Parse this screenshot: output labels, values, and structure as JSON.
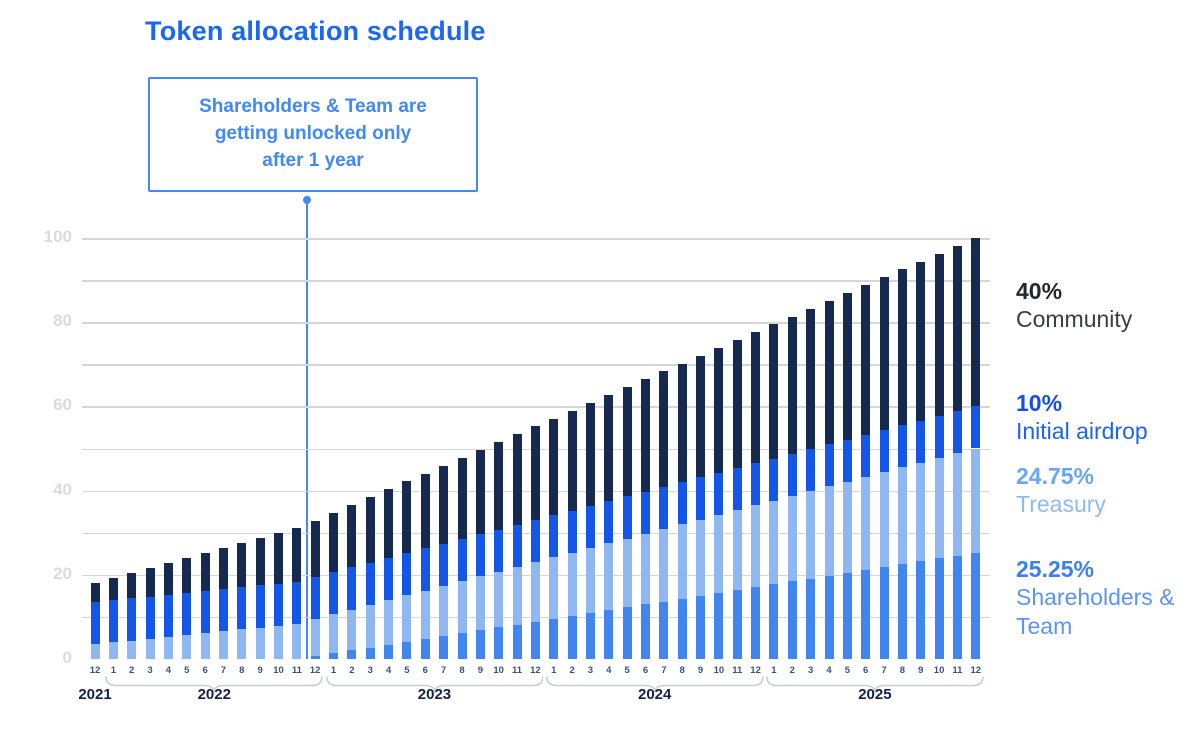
{
  "title": "Token allocation schedule",
  "callout": {
    "line1": "Shareholders & Team are",
    "line2": "getting unlocked only",
    "line3": "after 1 year",
    "color": "#4189f6"
  },
  "colors": {
    "title": "#1b67f2",
    "gridline": "#d6d6d9",
    "y_tick_label": "#dbdbdf",
    "month_label": "#3b517f",
    "year_label": "#13204a",
    "brace": "#c9cdd6"
  },
  "chart_data": {
    "type": "bar",
    "stacked": true,
    "title": "Token allocation schedule",
    "xlabel": "",
    "ylabel": "",
    "ylim": [
      0,
      100
    ],
    "y_ticks": [
      0,
      20,
      40,
      60,
      80,
      100
    ],
    "gridline_step": 10,
    "legend_position": "right",
    "x": [
      "12",
      "1",
      "2",
      "3",
      "4",
      "5",
      "6",
      "7",
      "8",
      "9",
      "10",
      "11",
      "12",
      "1",
      "2",
      "3",
      "4",
      "5",
      "6",
      "7",
      "8",
      "9",
      "10",
      "11",
      "12",
      "1",
      "2",
      "3",
      "4",
      "5",
      "6",
      "7",
      "8",
      "9",
      "10",
      "11",
      "12",
      "1",
      "2",
      "3",
      "4",
      "5",
      "6",
      "7",
      "8",
      "9",
      "10",
      "11",
      "12"
    ],
    "year_groups": [
      {
        "label": "2021",
        "start": 0,
        "end": 0
      },
      {
        "label": "2022",
        "start": 1,
        "end": 12
      },
      {
        "label": "2023",
        "start": 13,
        "end": 24
      },
      {
        "label": "2024",
        "start": 25,
        "end": 36
      },
      {
        "label": "2025",
        "start": 37,
        "end": 48
      }
    ],
    "series": [
      {
        "name": "Shareholders & Team",
        "color": "#4085f0",
        "values": [
          0,
          0,
          0,
          0,
          0,
          0,
          0,
          0,
          0,
          0,
          0,
          0,
          0.68,
          1.36,
          2.05,
          2.73,
          3.41,
          4.09,
          4.78,
          5.46,
          6.14,
          6.82,
          7.51,
          8.19,
          8.87,
          9.55,
          10.24,
          10.92,
          11.6,
          12.28,
          12.97,
          13.65,
          14.33,
          15.01,
          15.7,
          16.38,
          17.06,
          17.74,
          18.43,
          19.11,
          19.79,
          20.47,
          21.16,
          21.84,
          22.52,
          23.2,
          23.89,
          24.57,
          25.25
        ]
      },
      {
        "name": "Treasury",
        "color": "#8fb8f3",
        "values": [
          3.5,
          3.94,
          4.39,
          4.83,
          5.27,
          5.71,
          6.16,
          6.6,
          7.04,
          7.48,
          7.93,
          8.37,
          8.81,
          9.26,
          9.7,
          10.14,
          10.58,
          11.03,
          11.47,
          11.91,
          12.35,
          12.8,
          13.24,
          13.68,
          14.13,
          14.57,
          15.01,
          15.45,
          15.9,
          16.34,
          16.78,
          17.22,
          17.67,
          18.11,
          18.55,
          18.99,
          19.44,
          19.88,
          20.32,
          20.77,
          21.21,
          21.65,
          22.09,
          22.54,
          22.98,
          23.42,
          23.86,
          24.31,
          24.75
        ]
      },
      {
        "name": "Initial airdrop",
        "color": "#1456e8",
        "values": [
          10,
          10,
          10,
          10,
          10,
          10,
          10,
          10,
          10,
          10,
          10,
          10,
          10,
          10,
          10,
          10,
          10,
          10,
          10,
          10,
          10,
          10,
          10,
          10,
          10,
          10,
          10,
          10,
          10,
          10,
          10,
          10,
          10,
          10,
          10,
          10,
          10,
          10,
          10,
          10,
          10,
          10,
          10,
          10,
          10,
          10,
          10,
          10,
          10
        ]
      },
      {
        "name": "Community",
        "color": "#16294e",
        "values": [
          4.5,
          5.24,
          5.98,
          6.72,
          7.46,
          8.2,
          8.94,
          9.68,
          10.42,
          11.16,
          11.9,
          12.64,
          13.38,
          14.11,
          14.85,
          15.59,
          16.33,
          17.07,
          17.81,
          18.55,
          19.29,
          20.03,
          20.77,
          21.51,
          22.25,
          22.99,
          23.73,
          24.47,
          25.21,
          25.95,
          26.69,
          27.43,
          28.17,
          28.91,
          29.65,
          30.39,
          31.13,
          31.86,
          32.6,
          33.34,
          34.08,
          34.82,
          35.56,
          36.3,
          37.04,
          37.78,
          38.52,
          39.26,
          40
        ]
      }
    ],
    "annotation": {
      "text": "Shareholders & Team are getting unlocked only after 1 year",
      "points_to_month": "2022-12"
    }
  },
  "legend": [
    {
      "pct": "40%",
      "label": "Community",
      "pct_color": "#26262e",
      "label_color": "#3c3c44"
    },
    {
      "pct": "10%",
      "label": "Initial airdrop",
      "pct_color": "#1450e8",
      "label_color": "#1d63f2"
    },
    {
      "pct": "24.75%",
      "label": "Treasury",
      "pct_color": "#6aa6f5",
      "label_color": "#8ebbf6"
    },
    {
      "pct": "25.25%",
      "label": "Shareholders & Team",
      "pct_color": "#3d7ff0",
      "label_color": "#5b95f2"
    }
  ]
}
